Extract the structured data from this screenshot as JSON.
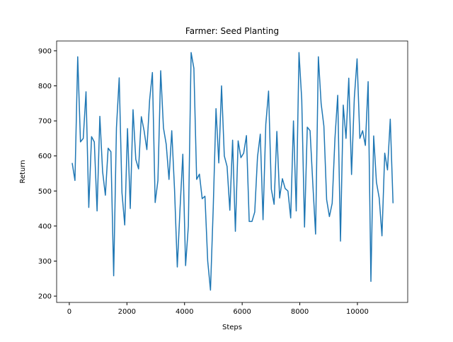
{
  "chart_data": {
    "type": "line",
    "title": "Farmer: Seed Planting",
    "xlabel": "Steps",
    "ylabel": "Return",
    "x": [
      100,
      196,
      292,
      388,
      484,
      580,
      676,
      772,
      868,
      964,
      1060,
      1156,
      1252,
      1348,
      1444,
      1540,
      1636,
      1732,
      1828,
      1924,
      2020,
      2116,
      2212,
      2308,
      2404,
      2500,
      2596,
      2692,
      2788,
      2884,
      2980,
      3076,
      3172,
      3268,
      3364,
      3460,
      3556,
      3652,
      3748,
      3844,
      3940,
      4036,
      4132,
      4228,
      4324,
      4420,
      4516,
      4612,
      4708,
      4804,
      4900,
      4996,
      5092,
      5188,
      5284,
      5380,
      5476,
      5572,
      5668,
      5764,
      5860,
      5956,
      6052,
      6148,
      6244,
      6340,
      6436,
      6532,
      6628,
      6724,
      6820,
      6916,
      7012,
      7108,
      7204,
      7300,
      7396,
      7492,
      7588,
      7684,
      7780,
      7876,
      7972,
      8068,
      8164,
      8260,
      8356,
      8452,
      8548,
      8644,
      8740,
      8836,
      8932,
      9028,
      9124,
      9220,
      9316,
      9412,
      9508,
      9604,
      9700,
      9796,
      9892,
      9988,
      10084,
      10180,
      10276,
      10372,
      10468,
      10564,
      10660,
      10756,
      10852,
      10948,
      11044,
      11140,
      11236
    ],
    "series": [
      {
        "color": "#1f77b4",
        "values": [
          580,
          530,
          883,
          640,
          650,
          783,
          453,
          655,
          640,
          443,
          713,
          555,
          488,
          622,
          612,
          258,
          680,
          823,
          495,
          403,
          678,
          450,
          732,
          590,
          563,
          712,
          672,
          618,
          760,
          838,
          467,
          530,
          843,
          680,
          633,
          533,
          672,
          505,
          283,
          450,
          605,
          287,
          400,
          895,
          850,
          533,
          548,
          478,
          485,
          300,
          217,
          453,
          735,
          580,
          800,
          600,
          570,
          445,
          645,
          385,
          643,
          595,
          608,
          658,
          413,
          413,
          440,
          597,
          662,
          418,
          690,
          785,
          505,
          462,
          670,
          480,
          535,
          507,
          500,
          423,
          700,
          443,
          895,
          760,
          397,
          682,
          672,
          520,
          377,
          883,
          750,
          685,
          475,
          427,
          465,
          650,
          773,
          357,
          745,
          650,
          822,
          547,
          765,
          877,
          650,
          672,
          630,
          812,
          242,
          657,
          525,
          480,
          372,
          608,
          560,
          705,
          465
        ]
      }
    ],
    "xlim": [
      -440,
      11745
    ],
    "ylim": [
      182,
      928
    ],
    "xticks": [
      0,
      2000,
      4000,
      6000,
      8000,
      10000
    ],
    "yticks": [
      200,
      300,
      400,
      500,
      600,
      700,
      800,
      900
    ]
  }
}
